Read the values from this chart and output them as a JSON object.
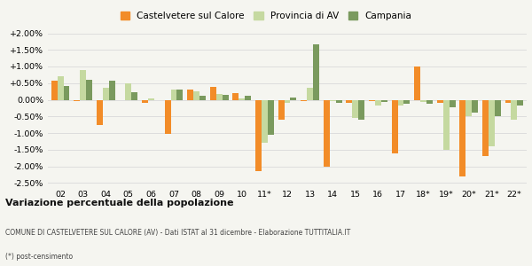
{
  "years": [
    "02",
    "03",
    "04",
    "05",
    "06",
    "07",
    "08",
    "09",
    "10",
    "11*",
    "12",
    "13",
    "14",
    "15",
    "16",
    "17",
    "18*",
    "19*",
    "20*",
    "21*",
    "22*"
  ],
  "castelvetere": [
    0.58,
    -0.05,
    -0.75,
    0.0,
    -0.08,
    -1.02,
    0.3,
    0.4,
    0.2,
    -2.15,
    -0.6,
    -0.05,
    -2.0,
    -0.1,
    -0.05,
    -1.6,
    1.0,
    -0.1,
    -2.3,
    -1.7,
    -0.1
  ],
  "provincia_av": [
    0.7,
    0.9,
    0.35,
    0.5,
    0.05,
    0.3,
    0.25,
    0.18,
    0.05,
    -1.3,
    -0.1,
    0.35,
    -0.05,
    -0.55,
    -0.18,
    -0.18,
    -0.07,
    -1.5,
    -0.5,
    -1.4,
    -0.6
  ],
  "campania": [
    0.42,
    0.6,
    0.58,
    0.22,
    0.0,
    0.32,
    0.12,
    0.15,
    0.12,
    -1.05,
    0.08,
    1.68,
    -0.08,
    -0.6,
    -0.07,
    -0.12,
    -0.12,
    -0.22,
    -0.38,
    -0.48,
    -0.17
  ],
  "color_castelvetere": "#f28c28",
  "color_provincia": "#c5d9a0",
  "color_campania": "#7a9a5e",
  "ylim": [
    -2.6,
    2.2
  ],
  "ytick_vals": [
    -2.5,
    -2.0,
    -1.5,
    -1.0,
    -0.5,
    0.0,
    0.5,
    1.0,
    1.5,
    2.0
  ],
  "ytick_labels": [
    "-2.50%",
    "-2.00%",
    "-1.50%",
    "-1.00%",
    "-0.50%",
    "0.00%",
    "+0.50%",
    "+1.00%",
    "+1.50%",
    "+2.00%"
  ],
  "title": "Variazione percentuale della popolazione",
  "subtitle": "COMUNE DI CASTELVETERE SUL CALORE (AV) - Dati ISTAT al 31 dicembre - Elaborazione TUTTITALIA.IT",
  "footnote": "(*) post-censimento",
  "legend_labels": [
    "Castelvetere sul Calore",
    "Provincia di AV",
    "Campania"
  ],
  "background_color": "#f5f5f0",
  "grid_color": "#dddddd"
}
